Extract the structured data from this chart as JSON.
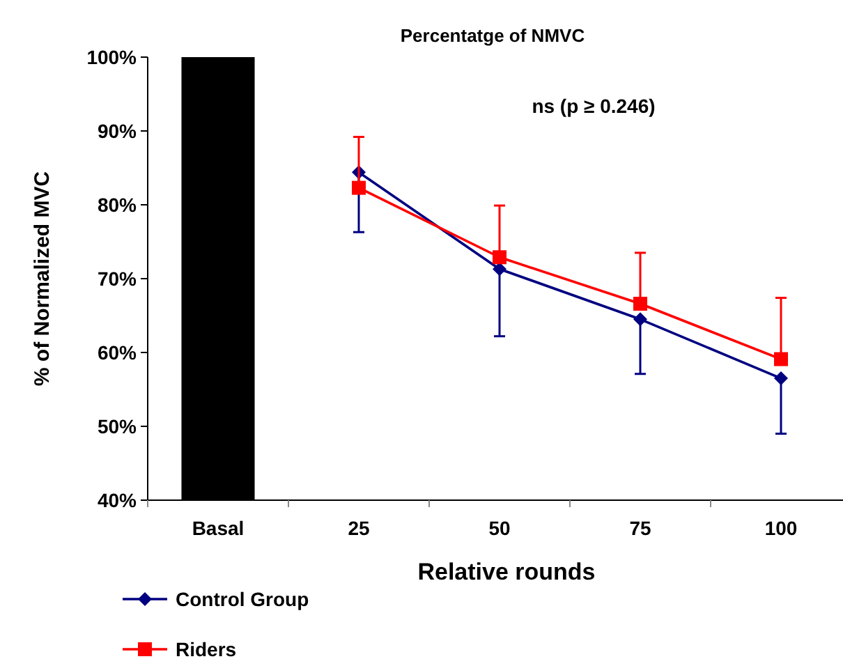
{
  "chart_data": {
    "type": "line",
    "title": "Percentatge of NMVC",
    "xlabel": "Relative rounds",
    "ylabel": "% of Normalized MVC",
    "annotations": [
      "ns (p ≥ 0.246)"
    ],
    "categories": [
      "Basal",
      "25",
      "50",
      "75",
      "100"
    ],
    "series": [
      {
        "type": "bar",
        "color": "#000000",
        "values": [
          100,
          null,
          null,
          null,
          null
        ]
      },
      {
        "name": "Control Group",
        "color": "#000080",
        "marker": "diamond",
        "values": [
          null,
          84.4,
          71.3,
          64.5,
          56.5
        ],
        "errors": [
          null,
          [
            76.3,
            84.4
          ],
          [
            62.2,
            71.3
          ],
          [
            57.1,
            64.5
          ],
          [
            49.0,
            56.5
          ]
        ]
      },
      {
        "name": "Riders",
        "color": "#ff0000",
        "marker": "square",
        "values": [
          null,
          82.3,
          72.9,
          66.6,
          59.1
        ],
        "errors": [
          null,
          [
            82.3,
            89.2
          ],
          [
            72.9,
            79.9
          ],
          [
            66.6,
            73.5
          ],
          [
            59.1,
            67.4
          ]
        ]
      }
    ],
    "ylim": [
      40,
      100
    ],
    "yticks": [
      {
        "value": 40,
        "label": "40%"
      },
      {
        "value": 50,
        "label": "50%"
      },
      {
        "value": 60,
        "label": "60%"
      },
      {
        "value": 70,
        "label": "70%"
      },
      {
        "value": 80,
        "label": "80%"
      },
      {
        "value": 90,
        "label": "90%"
      },
      {
        "value": 100,
        "label": "100%"
      }
    ],
    "grid": false,
    "legend": "bottom left"
  }
}
